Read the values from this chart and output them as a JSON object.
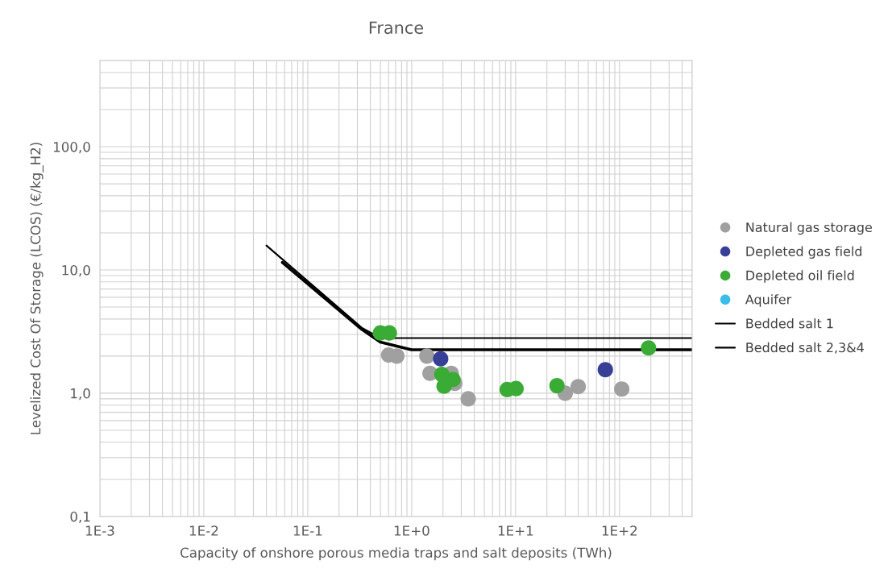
{
  "chart_data": {
    "type": "scatter",
    "title": "France",
    "xlabel": "Capacity of onshore porous media traps and salt deposits (TWh)",
    "ylabel": "Levelized Cost Of Storage (LCOS) (€/kg_H2)",
    "log": "xy",
    "grid": true,
    "legend": "right",
    "xlim": [
      0.001,
      500
    ],
    "ylim": [
      0.1,
      500
    ],
    "xticks": [
      {
        "value": 0.001,
        "label": "1E-3"
      },
      {
        "value": 0.01,
        "label": "1E-2"
      },
      {
        "value": 0.1,
        "label": "1E-1"
      },
      {
        "value": 1,
        "label": "1E+0"
      },
      {
        "value": 10,
        "label": "1E+1"
      },
      {
        "value": 100,
        "label": "1E+2"
      }
    ],
    "yticks": [
      {
        "value": 0.1,
        "label": "0,1"
      },
      {
        "value": 1,
        "label": "1,0"
      },
      {
        "value": 10,
        "label": "10,0"
      },
      {
        "value": 100,
        "label": "100,0"
      }
    ],
    "series": [
      {
        "name": "Natural gas storage",
        "marker": "circle",
        "color": "#a0a0a0",
        "x": [
          0.6,
          0.72,
          1.4,
          1.5,
          2.4,
          2.6,
          3.5,
          30,
          40,
          105
        ],
        "values": [
          2.04,
          2.0,
          2.0,
          1.45,
          1.45,
          1.2,
          0.9,
          1.0,
          1.13,
          1.08
        ]
      },
      {
        "name": "Depleted gas field",
        "marker": "circle",
        "color": "#383f97",
        "x": [
          1.9,
          73
        ],
        "values": [
          1.9,
          1.55
        ]
      },
      {
        "name": "Depleted oil field",
        "marker": "circle",
        "color": "#3aac35",
        "x": [
          0.5,
          0.61,
          1.95,
          2.5,
          2.05,
          8.3,
          10.1,
          25,
          190
        ],
        "values": [
          3.08,
          3.08,
          1.42,
          1.29,
          1.14,
          1.07,
          1.09,
          1.15,
          2.33
        ]
      },
      {
        "name": "Aquifer",
        "marker": "circle",
        "color": "#3bbdeb"
      },
      {
        "name": "Bedded salt 1",
        "type": "line",
        "marker": "none",
        "color": "#000000",
        "x": [
          0.04,
          0.33,
          0.5,
          500
        ],
        "values": [
          15.8,
          3.4,
          2.8,
          2.8
        ]
      },
      {
        "name": "Bedded salt 2,3&4",
        "type": "line",
        "marker": "none",
        "color": "#000000",
        "x": [
          0.057,
          0.33,
          0.5,
          1.0,
          500
        ],
        "values": [
          11.5,
          3.3,
          2.6,
          2.25,
          2.25
        ]
      }
    ]
  }
}
